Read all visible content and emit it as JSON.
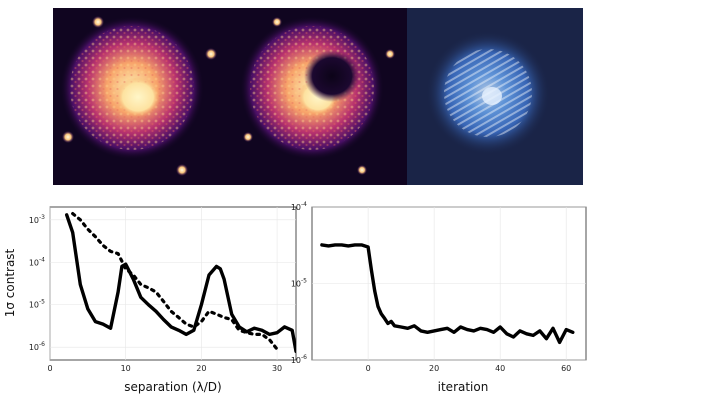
{
  "images": [
    {
      "colormap": "magma",
      "colors": {
        "background": "#100520",
        "ring": "#b8326e",
        "core": "#fcf2b4"
      }
    },
    {
      "colormap": "magma",
      "colors": {
        "background": "#100520",
        "ring": "#b8326e",
        "core": "#fcf2b4",
        "dark_hole": "#0c0418"
      }
    },
    {
      "colormap": "blue",
      "colors": {
        "background": "#1a2447",
        "glow": "#3b7fd8",
        "core": "#cfe6ff"
      }
    }
  ],
  "chart_data": [
    {
      "type": "line",
      "xlabel": "separation (λ/D)",
      "ylabel": "1σ contrast",
      "xlim": [
        0,
        32.5
      ],
      "ylim": [
        5e-07,
        0.002
      ],
      "yscale": "log",
      "xticks": [
        "0",
        "10",
        "20",
        "30"
      ],
      "yticks": [
        {
          "base": "10",
          "exp": "-3"
        },
        {
          "base": "10",
          "exp": "-4"
        },
        {
          "base": "10",
          "exp": "-5"
        },
        {
          "base": "10",
          "exp": "-6"
        }
      ],
      "grid": true,
      "series": [
        {
          "style": "solid",
          "x": [
            2.2,
            3.0,
            4.0,
            5.0,
            6.0,
            7.0,
            8.0,
            9.0,
            9.5,
            10.0,
            11.0,
            12.0,
            13.0,
            14.0,
            15.0,
            16.0,
            17.0,
            18.0,
            19.0,
            20.0,
            21.0,
            22.0,
            22.5,
            23.0,
            24.0,
            25.0,
            26.0,
            27.0,
            28.0,
            29.0,
            30.0,
            31.0,
            32.0,
            32.5
          ],
          "y": [
            0.0013,
            0.0005,
            3e-05,
            8e-06,
            4e-06,
            3.5e-06,
            2.8e-06,
            2e-05,
            8e-05,
            9e-05,
            4e-05,
            1.5e-05,
            1e-05,
            7e-06,
            4.5e-06,
            3e-06,
            2.5e-06,
            2e-06,
            2.5e-06,
            1e-05,
            5e-05,
            8e-05,
            7e-05,
            4e-05,
            6e-06,
            3e-06,
            2.3e-06,
            2.8e-06,
            2.5e-06,
            2e-06,
            2.2e-06,
            3e-06,
            2.5e-06,
            8e-07
          ]
        },
        {
          "style": "dotted",
          "x": [
            3.0,
            4.0,
            5.0,
            6.0,
            7.0,
            8.0,
            9.0,
            10.0,
            11.0,
            12.0,
            13.0,
            14.0,
            15.0,
            16.0,
            17.0,
            18.0,
            19.0,
            20.0,
            21.0,
            22.0,
            23.0,
            24.0,
            25.0,
            26.0,
            27.0,
            28.0,
            29.0,
            30.0
          ],
          "y": [
            0.0014,
            0.001,
            0.0006,
            0.0004,
            0.00025,
            0.00018,
            0.00016,
            7e-05,
            5e-05,
            3e-05,
            2.5e-05,
            2e-05,
            1.2e-05,
            7e-06,
            5e-06,
            3.5e-06,
            3e-06,
            4e-06,
            7e-06,
            6e-06,
            5e-06,
            4.5e-06,
            2.5e-06,
            2.2e-06,
            2e-06,
            2e-06,
            1.5e-06,
            9e-07
          ]
        }
      ]
    },
    {
      "type": "line",
      "xlabel": "iteration",
      "ylabel": "",
      "xlim": [
        -17,
        66
      ],
      "ylim": [
        1e-06,
        0.0001
      ],
      "yscale": "log",
      "xticks": [
        "0",
        "20",
        "40",
        "60"
      ],
      "yticks": [
        {
          "base": "10",
          "exp": "-4"
        },
        {
          "base": "10",
          "exp": "-5"
        },
        {
          "base": "10",
          "exp": "-6"
        }
      ],
      "grid": true,
      "series": [
        {
          "style": "solid",
          "x": [
            -14,
            -12,
            -10,
            -8,
            -6,
            -4,
            -2,
            0,
            1,
            2,
            3,
            4,
            5,
            6,
            7,
            8,
            10,
            12,
            14,
            16,
            18,
            20,
            22,
            24,
            26,
            28,
            30,
            32,
            34,
            36,
            38,
            40,
            42,
            44,
            46,
            48,
            50,
            52,
            54,
            56,
            58,
            60,
            62
          ],
          "y": [
            3.2e-05,
            3.1e-05,
            3.2e-05,
            3.2e-05,
            3.1e-05,
            3.2e-05,
            3.2e-05,
            3e-05,
            1.5e-05,
            8e-06,
            5e-06,
            4e-06,
            3.5e-06,
            3e-06,
            3.2e-06,
            2.8e-06,
            2.7e-06,
            2.6e-06,
            2.8e-06,
            2.4e-06,
            2.3e-06,
            2.4e-06,
            2.5e-06,
            2.6e-06,
            2.3e-06,
            2.7e-06,
            2.5e-06,
            2.4e-06,
            2.6e-06,
            2.5e-06,
            2.3e-06,
            2.7e-06,
            2.2e-06,
            2e-06,
            2.4e-06,
            2.2e-06,
            2.1e-06,
            2.4e-06,
            1.9e-06,
            2.6e-06,
            1.7e-06,
            2.5e-06,
            2.3e-06
          ]
        }
      ]
    }
  ]
}
